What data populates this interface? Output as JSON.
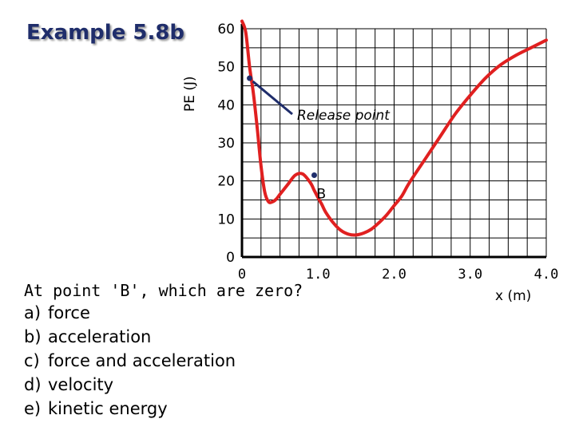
{
  "title": "Example 5.8b",
  "question": {
    "prompt": "At point 'B', which are zero?",
    "options": [
      {
        "letter": "a)",
        "text": "force"
      },
      {
        "letter": "b)",
        "text": "acceleration"
      },
      {
        "letter": "c)",
        "text": "force and acceleration"
      },
      {
        "letter": "d)",
        "text": "velocity"
      },
      {
        "letter": "e)",
        "text": "kinetic energy"
      }
    ]
  },
  "chart_data": {
    "type": "line",
    "ylabel": "PE (J)",
    "xlabel": "x (m)",
    "xlim": [
      0,
      4.0
    ],
    "ylim": [
      0,
      60
    ],
    "y_ticks": [
      "0",
      "10",
      "20",
      "30",
      "40",
      "50",
      "60"
    ],
    "x_ticks": [
      "0",
      "1.0",
      "2.0",
      "3.0",
      "4.0"
    ],
    "grid": true,
    "line_color": "#e02020",
    "series": [
      {
        "x": [
          0.0,
          0.05,
          0.1,
          0.15,
          0.2,
          0.25,
          0.3,
          0.35,
          0.4,
          0.45,
          0.5,
          0.6,
          0.7,
          0.8,
          0.9,
          0.95,
          1.0,
          1.05,
          1.1,
          1.2,
          1.3,
          1.4,
          1.5,
          1.6,
          1.7,
          1.8,
          1.9,
          2.0,
          2.1,
          2.2,
          2.4,
          2.6,
          2.8,
          3.0,
          3.2,
          3.4,
          3.6,
          3.8,
          4.0
        ],
        "y": [
          62,
          59,
          50,
          43,
          34,
          24,
          17,
          14.5,
          14.5,
          15.2,
          16.5,
          19,
          21.5,
          21.8,
          19.5,
          17.5,
          15.6,
          13.8,
          11.8,
          9,
          7,
          6,
          5.8,
          6.3,
          7.3,
          9,
          11,
          13.5,
          16,
          19.5,
          25.5,
          31.5,
          37.5,
          42.5,
          47,
          50.5,
          53,
          55,
          57
        ]
      }
    ],
    "annotations": [
      {
        "label": "Release point",
        "x": 0.1,
        "y": 47
      },
      {
        "label": "B",
        "x": 0.95,
        "y": 21.5
      }
    ]
  }
}
